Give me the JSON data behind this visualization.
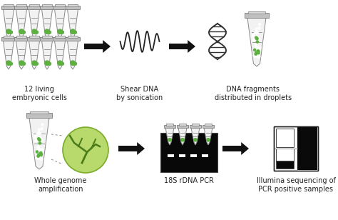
{
  "bg_color": "#ffffff",
  "arrow_color": "#1a1a1a",
  "tube_cap_color": "#c0c0c0",
  "tube_body_color": "#f2f2f2",
  "tube_edge_color": "#888888",
  "green_dot_color": "#5db040",
  "dna_color": "#444444",
  "gel_bg": "#0a0a0a",
  "gel_band_color": "#ffffff",
  "text_color": "#222222",
  "labels": [
    "12 living\nembryonic cells",
    "Shear DNA\nby sonication",
    "DNA fragments\ndistributed in droplets",
    "Whole genome\namplification",
    "18S rDNA PCR",
    "Illumina sequencing of\nPCR positive samples"
  ],
  "label_fontsize": 7.0,
  "fig_width": 4.74,
  "fig_height": 3.08,
  "dpi": 100
}
